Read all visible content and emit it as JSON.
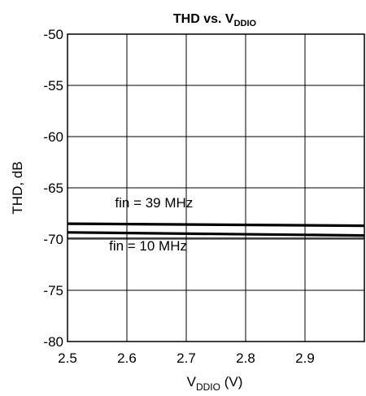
{
  "chart_data": {
    "type": "line",
    "title": "THD vs. V",
    "title_subscript": "DDIO",
    "xlabel": "V",
    "xlabel_subscript": "DDIO",
    "xlabel_suffix": " (V)",
    "ylabel": "THD, dB",
    "xlim": [
      2.5,
      3.0
    ],
    "ylim": [
      -80,
      -50
    ],
    "xticks": [
      {
        "value": 2.5,
        "label": "2.5"
      },
      {
        "value": 2.6,
        "label": "2.6"
      },
      {
        "value": 2.7,
        "label": "2.7"
      },
      {
        "value": 2.8,
        "label": "2.8"
      },
      {
        "value": 2.9,
        "label": "2.9"
      }
    ],
    "yticks": [
      {
        "value": -50,
        "label": "-50"
      },
      {
        "value": -55,
        "label": "-55"
      },
      {
        "value": -60,
        "label": "-60"
      },
      {
        "value": -65,
        "label": "-65"
      },
      {
        "value": -70,
        "label": "-70"
      },
      {
        "value": -75,
        "label": "-75"
      },
      {
        "value": -80,
        "label": "-80"
      }
    ],
    "grid": true,
    "series": [
      {
        "x": [
          2.5,
          3.0
        ],
        "y": [
          -68.5,
          -68.7
        ]
      },
      {
        "x": [
          2.5,
          3.0
        ],
        "y": [
          -69.35,
          -69.65
        ]
      }
    ],
    "annotations": [
      {
        "text": "fin = 39 MHz",
        "x": 2.58,
        "y": -66.9
      },
      {
        "text": "fin = 10 MHz",
        "x": 2.57,
        "y": -71.1
      }
    ],
    "extra_hlines": [
      {
        "y": -69.9
      }
    ]
  }
}
